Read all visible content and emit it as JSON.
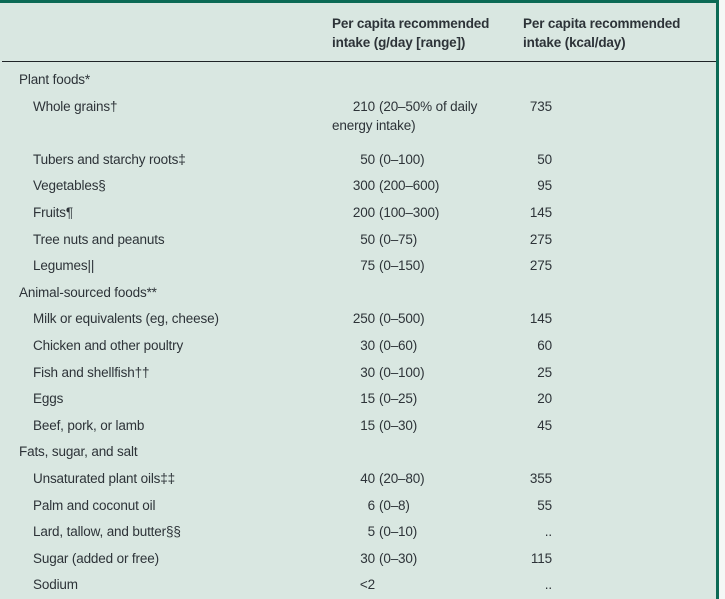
{
  "table": {
    "col_gday_header": "Per capita recommended intake (g/day [range])",
    "col_kcal_header": "Per capita recommended intake (kcal/day)",
    "rows": [
      {
        "type": "section",
        "label": "Plant foods*",
        "num": "",
        "range": "",
        "kcal": ""
      },
      {
        "type": "item",
        "tall": true,
        "label": "Whole grains†",
        "num": "210",
        "range": "(20–50% of daily energy intake)",
        "kcal": "735"
      },
      {
        "type": "item",
        "label": "Tubers and starchy roots‡",
        "num": "50",
        "range": "(0–100)",
        "kcal": "50"
      },
      {
        "type": "item",
        "label": "Vegetables§",
        "num": "300",
        "range": "(200–600)",
        "kcal": "95"
      },
      {
        "type": "item",
        "label": "Fruits¶",
        "num": "200",
        "range": "(100–300)",
        "kcal": "145"
      },
      {
        "type": "item",
        "label": "Tree nuts and peanuts",
        "num": "50",
        "range": "(0–75)",
        "kcal": "275"
      },
      {
        "type": "item",
        "label": "Legumes||",
        "num": "75",
        "range": "(0–150)",
        "kcal": "275"
      },
      {
        "type": "section",
        "label": "Animal-sourced foods**",
        "num": "",
        "range": "",
        "kcal": ""
      },
      {
        "type": "item",
        "label": "Milk or equivalents (eg, cheese)",
        "num": "250",
        "range": "(0–500)",
        "kcal": "145"
      },
      {
        "type": "item",
        "label": "Chicken and other poultry",
        "num": "30",
        "range": "(0–60)",
        "kcal": "60"
      },
      {
        "type": "item",
        "label": "Fish and shellfish††",
        "num": "30",
        "range": "(0–100)",
        "kcal": "25"
      },
      {
        "type": "item",
        "label": "Eggs",
        "num": "15",
        "range": "(0–25)",
        "kcal": "20"
      },
      {
        "type": "item",
        "label": "Beef, pork, or lamb",
        "num": "15",
        "range": "(0–30)",
        "kcal": "45"
      },
      {
        "type": "section",
        "label": "Fats, sugar, and salt",
        "num": "",
        "range": "",
        "kcal": ""
      },
      {
        "type": "item",
        "label": "Unsaturated plant oils‡‡",
        "num": "40",
        "range": "(20–80)",
        "kcal": "355"
      },
      {
        "type": "item",
        "label": "Palm and coconut oil",
        "num": "6",
        "range": "(0–8)",
        "kcal": "55"
      },
      {
        "type": "item",
        "label": "Lard, tallow, and butter§§",
        "num": "5",
        "range": "(0–10)",
        "kcal": ".."
      },
      {
        "type": "item",
        "label": "Sugar (added or free)",
        "num": "30",
        "range": "(0–30)",
        "kcal": "115"
      },
      {
        "type": "item",
        "label": "Sodium",
        "num": "<2",
        "range": "",
        "kcal": ".."
      }
    ],
    "colors": {
      "background": "#d9e7e1",
      "border_green": "#0b6a55",
      "text": "#2d3338",
      "header_rule": "#1f2427",
      "right_margin": "#f4f8f6"
    }
  }
}
